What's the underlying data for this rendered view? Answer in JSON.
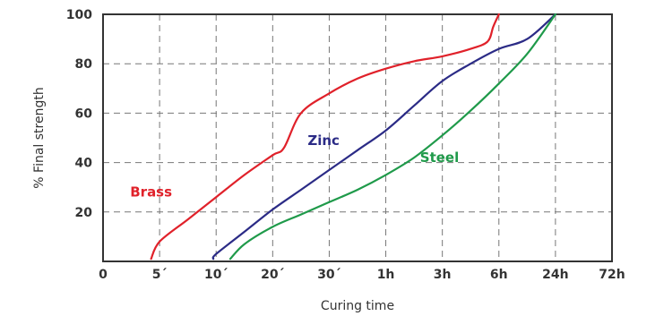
{
  "chart_data": {
    "type": "line",
    "title": "",
    "xlabel": "Curing time",
    "ylabel": "% Final strength",
    "x_scale": "categorical time axis (evenly spaced ticks)",
    "x_ticks": [
      "0",
      "5´",
      "10´",
      "20´",
      "30´",
      "1h",
      "3h",
      "6h",
      "24h",
      "72h"
    ],
    "y_ticks": [
      "20",
      "40",
      "60",
      "80",
      "100"
    ],
    "ylim": [
      0,
      100
    ],
    "grid": true,
    "colors": {
      "Brass": "#e0212a",
      "Zinc": "#2b2b86",
      "Steel": "#1f9a4a",
      "frame": "#333333"
    },
    "series": [
      {
        "name": "Brass",
        "x_index": [
          0.85,
          1.0,
          1.5,
          2.0,
          2.5,
          3.0,
          3.2,
          3.5,
          4.0,
          4.5,
          5.0,
          5.5,
          6.0,
          6.5,
          6.8,
          6.9,
          7.0
        ],
        "values": [
          1,
          8,
          17,
          26,
          35,
          43,
          46,
          60,
          68,
          74,
          78,
          81,
          83,
          86,
          89,
          95,
          100
        ]
      },
      {
        "name": "Zinc",
        "x_index": [
          1.95,
          2.0,
          2.5,
          3.0,
          3.5,
          4.0,
          4.5,
          5.0,
          5.5,
          6.0,
          6.5,
          7.0,
          7.5,
          8.0
        ],
        "values": [
          1,
          3,
          12,
          21,
          29,
          37,
          45,
          53,
          63,
          73,
          80,
          86,
          90,
          100
        ]
      },
      {
        "name": "Steel",
        "x_index": [
          2.25,
          2.5,
          3.0,
          3.5,
          4.0,
          4.5,
          5.0,
          5.5,
          6.0,
          6.5,
          7.0,
          7.5,
          8.0
        ],
        "values": [
          1,
          7,
          14,
          19,
          24,
          29,
          35,
          42,
          51,
          61,
          72,
          84,
          100
        ]
      }
    ],
    "series_labels": [
      {
        "name": "Brass",
        "x_index": 0.85,
        "y": 28
      },
      {
        "name": "Zinc",
        "x_index": 3.9,
        "y": 49
      },
      {
        "name": "Steel",
        "x_index": 5.95,
        "y": 42
      }
    ]
  }
}
